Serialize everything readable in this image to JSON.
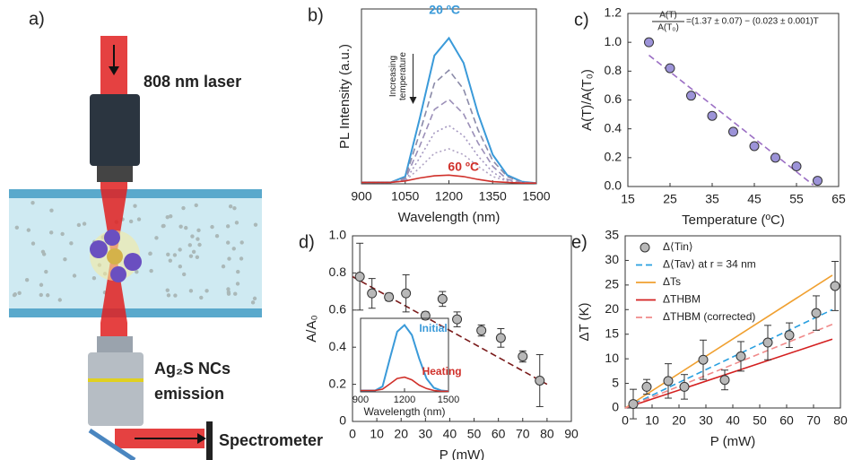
{
  "figure": {
    "label": "a)",
    "laser": "808 nm laser",
    "emission_1": "Ag₂S NCs",
    "emission_2": "emission",
    "spectrometer": "Spectrometer"
  },
  "chart_data": [
    {
      "type": "line",
      "label": "b)",
      "xlabel": "Wavelength (nm)",
      "ylabel": "PL Intensity (a.u.)",
      "x": [
        900,
        950,
        1000,
        1050,
        1100,
        1150,
        1200,
        1250,
        1300,
        1350,
        1400,
        1450,
        1500
      ],
      "xlim": [
        900,
        1500
      ],
      "xticks": [
        900,
        1050,
        1200,
        1350,
        1500
      ],
      "ylim": [
        0,
        1.2
      ],
      "annotations": [
        "20 ºC",
        "60 ºC",
        "Increasing",
        "temperature"
      ],
      "series": [
        {
          "color": "#3a9ad9",
          "style": "solid",
          "values": [
            0.01,
            0.01,
            0.01,
            0.05,
            0.45,
            0.88,
            1.0,
            0.83,
            0.48,
            0.2,
            0.06,
            0.015,
            0.005
          ]
        },
        {
          "color": "#8a8aa8",
          "style": "dashed",
          "values": [
            0.01,
            0.01,
            0.01,
            0.04,
            0.35,
            0.69,
            0.78,
            0.65,
            0.37,
            0.16,
            0.05,
            0.01,
            0.005
          ]
        },
        {
          "color": "#9b8fb8",
          "style": "dashed",
          "values": [
            0.01,
            0.01,
            0.01,
            0.03,
            0.26,
            0.51,
            0.58,
            0.48,
            0.28,
            0.12,
            0.03,
            0.01,
            0.005
          ]
        },
        {
          "color": "#a497c0",
          "style": "dotted",
          "values": [
            0.01,
            0.01,
            0.01,
            0.02,
            0.18,
            0.35,
            0.4,
            0.33,
            0.19,
            0.08,
            0.02,
            0.01,
            0.005
          ]
        },
        {
          "color": "#b0a4c4",
          "style": "dotted",
          "values": [
            0.01,
            0.01,
            0.01,
            0.02,
            0.11,
            0.21,
            0.24,
            0.2,
            0.12,
            0.05,
            0.02,
            0.01,
            0.005
          ]
        },
        {
          "color": "#d0302a",
          "style": "solid",
          "values": [
            0.01,
            0.01,
            0.01,
            0.02,
            0.04,
            0.055,
            0.06,
            0.05,
            0.03,
            0.015,
            0.01,
            0.005,
            0.005
          ]
        }
      ]
    },
    {
      "type": "scatter",
      "label": "c)",
      "xlabel": "Temperature (ºC)",
      "ylabel": "A(T)/A(T₀)",
      "equation": {
        "numerator": "A(T)",
        "denominator": "A(T₀)",
        "rhs": "=(1.37 ± 0.07) − (0.023 ± 0.001)T"
      },
      "xlim": [
        15,
        65
      ],
      "xticks": [
        15,
        25,
        35,
        45,
        55,
        65
      ],
      "ylim": [
        0,
        1.2
      ],
      "yticks": [
        {
          "value": 0,
          "label": "0.0"
        },
        0.2,
        0.4,
        0.6,
        0.8,
        {
          "value": 1,
          "label": "1.0"
        },
        1.2
      ],
      "series": [
        {
          "color": "#9b6fc4",
          "style": "dashed",
          "x": [
            20,
            59
          ],
          "values": [
            0.91,
            0.01
          ]
        },
        {
          "color": "#9c93d8",
          "style": "markers",
          "x": [
            20,
            25,
            30,
            35,
            40,
            45,
            50,
            55,
            60
          ],
          "values": [
            1.0,
            0.82,
            0.63,
            0.49,
            0.38,
            0.28,
            0.2,
            0.14,
            0.04
          ]
        }
      ]
    },
    {
      "type": "scatter",
      "label": "d)",
      "xlabel": "P (mW)",
      "ylabel": "A/A₀",
      "xlim": [
        0,
        90
      ],
      "xticks": [
        0,
        10,
        20,
        30,
        40,
        50,
        60,
        70,
        80,
        90
      ],
      "ylim": [
        0,
        1
      ],
      "yticks": [
        0,
        0.2,
        0.4,
        0.6,
        0.8,
        {
          "value": 1,
          "label": "1.0"
        }
      ],
      "series": [
        {
          "color": "#7a1a1a",
          "style": "dashed",
          "x": [
            0,
            80
          ],
          "values": [
            0.78,
            0.2
          ]
        },
        {
          "color": "#b8b8b8",
          "style": "markers",
          "x": [
            3,
            8,
            15,
            22,
            30,
            37,
            43,
            53,
            61,
            70,
            77
          ],
          "values": [
            0.78,
            0.69,
            0.67,
            0.69,
            0.57,
            0.66,
            0.55,
            0.49,
            0.45,
            0.35,
            0.22
          ],
          "errors": [
            0.18,
            0.08,
            0.02,
            0.1,
            0.02,
            0.04,
            0.04,
            0.03,
            0.05,
            0.03,
            0.14
          ]
        }
      ]
    },
    {
      "type": "line",
      "xlabel": "Wavelength (nm)",
      "x": [
        900,
        950,
        1000,
        1050,
        1100,
        1150,
        1200,
        1250,
        1300,
        1350,
        1400,
        1450,
        1500
      ],
      "xlim": [
        900,
        1500
      ],
      "xticks": [
        900,
        1200,
        1500
      ],
      "ylim": [
        0,
        1.1
      ],
      "annotations": [
        "Initial",
        "Heating"
      ],
      "series": [
        {
          "color": "#3a9ad9",
          "style": "solid",
          "values": [
            0.02,
            0.02,
            0.02,
            0.08,
            0.5,
            0.9,
            1.0,
            0.85,
            0.5,
            0.2,
            0.06,
            0.02,
            0.01
          ]
        },
        {
          "color": "#d0302a",
          "style": "solid",
          "values": [
            0.02,
            0.02,
            0.02,
            0.04,
            0.12,
            0.2,
            0.22,
            0.18,
            0.1,
            0.05,
            0.02,
            0.01,
            0.01
          ]
        }
      ]
    },
    {
      "type": "scatter",
      "label": "e)",
      "xlabel": "P (mW)",
      "ylabel": "ΔT (K)",
      "legend": "upper left",
      "xlim": [
        0,
        80
      ],
      "xticks": [
        0,
        10,
        20,
        30,
        40,
        50,
        60,
        70,
        80
      ],
      "ylim": [
        0,
        35
      ],
      "yticks": [
        0,
        5,
        10,
        15,
        20,
        25,
        30,
        35
      ],
      "series": [
        {
          "name": "Δ⟨Tin⟩",
          "color": "#b8b8b8",
          "style": "markers",
          "x": [
            3,
            8,
            16,
            22,
            29,
            37,
            43,
            53,
            61,
            71,
            78
          ],
          "values": [
            0.8,
            4.3,
            5.5,
            4.3,
            9.8,
            5.7,
            10.5,
            13.3,
            14.8,
            19.3,
            24.8
          ],
          "errors": [
            3,
            1.5,
            3.5,
            2.5,
            4,
            2,
            3,
            3.5,
            2.5,
            3.5,
            5
          ]
        },
        {
          "name": "Δ⟨Tav⟩ at r = 34 nm",
          "color": "#2aa0e0",
          "style": "dashed",
          "x": [
            0,
            77
          ],
          "values": [
            0,
            20
          ]
        },
        {
          "name": "ΔTs",
          "color": "#f0a030",
          "style": "solid",
          "x": [
            0,
            77
          ],
          "values": [
            0,
            27
          ]
        },
        {
          "name": "ΔTHBM",
          "color": "#d42020",
          "style": "solid",
          "x": [
            0,
            77
          ],
          "values": [
            0,
            14
          ]
        },
        {
          "name": "ΔTHBM (corrected)",
          "color": "#f08a8a",
          "style": "dashed",
          "x": [
            0,
            77
          ],
          "values": [
            0,
            17
          ]
        }
      ]
    }
  ]
}
